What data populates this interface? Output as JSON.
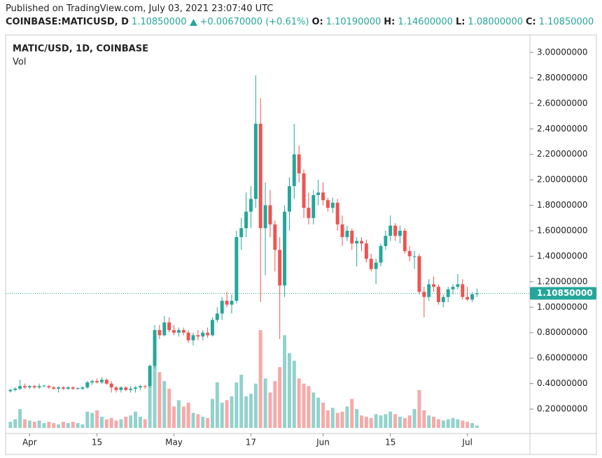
{
  "header": {
    "published": "Published on TradingView.com, July 03, 2021 23:07:40 UTC",
    "symbol": "COINBASE:MATICUSD, D",
    "price": "1.10850000",
    "change": "+0.00670000 (+0.61%)",
    "o_label": "O:",
    "o": "1.10190000",
    "h_label": "H:",
    "h": "1.14600000",
    "l_label": "L:",
    "l": "1.08000000",
    "c_label": "C:",
    "c": "1.10850000"
  },
  "chart_data": {
    "type": "candlestick",
    "title": "MATIC/USD, 1D, COINBASE",
    "volume_label": "Vol",
    "up_color": "#26a69a",
    "down_color": "#ef5350",
    "grid": false,
    "last_price_label": "1.10850000",
    "x": [
      "2021-03-28",
      "2021-03-29",
      "2021-03-30",
      "2021-03-31",
      "2021-04-01",
      "2021-04-02",
      "2021-04-03",
      "2021-04-04",
      "2021-04-05",
      "2021-04-06",
      "2021-04-07",
      "2021-04-08",
      "2021-04-09",
      "2021-04-10",
      "2021-04-11",
      "2021-04-12",
      "2021-04-13",
      "2021-04-14",
      "2021-04-15",
      "2021-04-16",
      "2021-04-17",
      "2021-04-18",
      "2021-04-19",
      "2021-04-20",
      "2021-04-21",
      "2021-04-22",
      "2021-04-23",
      "2021-04-24",
      "2021-04-25",
      "2021-04-26",
      "2021-04-27",
      "2021-04-28",
      "2021-04-29",
      "2021-04-30",
      "2021-05-01",
      "2021-05-02",
      "2021-05-03",
      "2021-05-04",
      "2021-05-05",
      "2021-05-06",
      "2021-05-07",
      "2021-05-08",
      "2021-05-09",
      "2021-05-10",
      "2021-05-11",
      "2021-05-12",
      "2021-05-13",
      "2021-05-14",
      "2021-05-15",
      "2021-05-16",
      "2021-05-17",
      "2021-05-18",
      "2021-05-19",
      "2021-05-20",
      "2021-05-21",
      "2021-05-22",
      "2021-05-23",
      "2021-05-24",
      "2021-05-25",
      "2021-05-26",
      "2021-05-27",
      "2021-05-28",
      "2021-05-29",
      "2021-05-30",
      "2021-05-31",
      "2021-06-01",
      "2021-06-02",
      "2021-06-03",
      "2021-06-04",
      "2021-06-05",
      "2021-06-06",
      "2021-06-07",
      "2021-06-08",
      "2021-06-09",
      "2021-06-10",
      "2021-06-11",
      "2021-06-12",
      "2021-06-13",
      "2021-06-14",
      "2021-06-15",
      "2021-06-16",
      "2021-06-17",
      "2021-06-18",
      "2021-06-19",
      "2021-06-20",
      "2021-06-21",
      "2021-06-22",
      "2021-06-23",
      "2021-06-24",
      "2021-06-25",
      "2021-06-26",
      "2021-06-27",
      "2021-06-28",
      "2021-06-29",
      "2021-06-30",
      "2021-07-01",
      "2021-07-02",
      "2021-07-03"
    ],
    "open": [
      0.34,
      0.35,
      0.36,
      0.38,
      0.37,
      0.38,
      0.37,
      0.38,
      0.38,
      0.37,
      0.36,
      0.37,
      0.36,
      0.37,
      0.36,
      0.36,
      0.37,
      0.41,
      0.42,
      0.41,
      0.43,
      0.4,
      0.37,
      0.35,
      0.37,
      0.35,
      0.36,
      0.37,
      0.38,
      0.38,
      0.54,
      0.82,
      0.78,
      0.88,
      0.82,
      0.8,
      0.82,
      0.8,
      0.74,
      0.78,
      0.77,
      0.8,
      0.78,
      0.9,
      0.95,
      1.05,
      1.02,
      1.05,
      1.55,
      1.62,
      1.75,
      1.85,
      2.44,
      1.62,
      1.8,
      1.65,
      1.45,
      1.17,
      1.75,
      1.95,
      2.2,
      2.05,
      1.78,
      1.7,
      1.88,
      1.9,
      1.84,
      1.78,
      1.82,
      1.65,
      1.55,
      1.6,
      1.5,
      1.52,
      1.5,
      1.38,
      1.3,
      1.35,
      1.48,
      1.56,
      1.64,
      1.56,
      1.6,
      1.44,
      1.4,
      1.4,
      1.12,
      1.08,
      1.18,
      1.16,
      1.04,
      1.08,
      1.14,
      1.16,
      1.18,
      1.08,
      1.06,
      1.1019
    ],
    "high": [
      0.36,
      0.37,
      0.43,
      0.4,
      0.39,
      0.39,
      0.4,
      0.39,
      0.39,
      0.38,
      0.38,
      0.38,
      0.38,
      0.38,
      0.37,
      0.38,
      0.42,
      0.43,
      0.44,
      0.45,
      0.44,
      0.42,
      0.38,
      0.38,
      0.38,
      0.38,
      0.38,
      0.39,
      0.39,
      0.55,
      0.86,
      0.86,
      0.93,
      0.92,
      0.86,
      0.84,
      0.84,
      0.82,
      0.8,
      0.82,
      0.82,
      0.84,
      0.92,
      1.0,
      1.08,
      1.12,
      1.1,
      1.6,
      1.7,
      1.9,
      1.95,
      2.82,
      2.64,
      1.98,
      1.92,
      1.68,
      1.55,
      1.8,
      2.02,
      2.44,
      2.27,
      2.08,
      1.9,
      1.92,
      2.0,
      1.98,
      1.86,
      1.86,
      1.85,
      1.72,
      1.64,
      1.62,
      1.55,
      1.55,
      1.53,
      1.42,
      1.38,
      1.5,
      1.6,
      1.72,
      1.66,
      1.64,
      1.62,
      1.48,
      1.44,
      1.42,
      1.16,
      1.22,
      1.24,
      1.18,
      1.1,
      1.16,
      1.18,
      1.26,
      1.22,
      1.16,
      1.12,
      1.146
    ],
    "low": [
      0.33,
      0.34,
      0.35,
      0.36,
      0.36,
      0.36,
      0.36,
      0.37,
      0.36,
      0.35,
      0.33,
      0.35,
      0.35,
      0.35,
      0.35,
      0.35,
      0.36,
      0.39,
      0.4,
      0.4,
      0.39,
      0.33,
      0.33,
      0.33,
      0.34,
      0.33,
      0.33,
      0.35,
      0.36,
      0.37,
      0.52,
      0.75,
      0.77,
      0.8,
      0.78,
      0.77,
      0.78,
      0.72,
      0.7,
      0.74,
      0.74,
      0.76,
      0.77,
      0.88,
      0.9,
      1.0,
      0.95,
      1.03,
      1.45,
      1.55,
      1.62,
      1.78,
      1.04,
      1.25,
      1.55,
      1.28,
      0.75,
      1.08,
      1.6,
      1.85,
      1.98,
      1.7,
      1.65,
      1.65,
      1.8,
      1.8,
      1.75,
      1.74,
      1.6,
      1.48,
      1.52,
      1.45,
      1.32,
      1.44,
      1.35,
      1.28,
      1.18,
      1.32,
      1.45,
      1.52,
      1.52,
      1.5,
      1.42,
      1.36,
      1.3,
      1.1,
      0.92,
      1.05,
      1.12,
      1.02,
      1.0,
      1.04,
      1.1,
      1.14,
      1.06,
      1.05,
      1.04,
      1.08
    ],
    "close": [
      0.35,
      0.36,
      0.38,
      0.37,
      0.38,
      0.37,
      0.38,
      0.385,
      0.37,
      0.36,
      0.37,
      0.36,
      0.37,
      0.36,
      0.365,
      0.37,
      0.41,
      0.42,
      0.41,
      0.43,
      0.4,
      0.37,
      0.35,
      0.37,
      0.35,
      0.36,
      0.37,
      0.38,
      0.375,
      0.54,
      0.82,
      0.78,
      0.88,
      0.82,
      0.8,
      0.82,
      0.8,
      0.74,
      0.78,
      0.77,
      0.8,
      0.78,
      0.9,
      0.95,
      1.05,
      1.02,
      1.05,
      1.55,
      1.62,
      1.75,
      1.85,
      2.44,
      1.62,
      1.8,
      1.65,
      1.45,
      1.17,
      1.75,
      1.95,
      2.2,
      2.05,
      1.78,
      1.7,
      1.88,
      1.9,
      1.84,
      1.78,
      1.82,
      1.65,
      1.55,
      1.6,
      1.5,
      1.52,
      1.5,
      1.38,
      1.3,
      1.35,
      1.48,
      1.56,
      1.64,
      1.56,
      1.6,
      1.44,
      1.4,
      1.4,
      1.12,
      1.08,
      1.18,
      1.16,
      1.04,
      1.08,
      1.14,
      1.16,
      1.18,
      1.08,
      1.06,
      1.1019,
      1.1085
    ],
    "volume": [
      0.1,
      0.12,
      0.2,
      0.12,
      0.11,
      0.1,
      0.11,
      0.09,
      0.1,
      0.09,
      0.08,
      0.1,
      0.09,
      0.1,
      0.09,
      0.08,
      0.18,
      0.17,
      0.19,
      0.14,
      0.12,
      0.13,
      0.11,
      0.12,
      0.14,
      0.15,
      0.18,
      0.14,
      0.12,
      0.38,
      0.65,
      0.49,
      0.42,
      0.36,
      0.22,
      0.27,
      0.22,
      0.25,
      0.17,
      0.16,
      0.14,
      0.13,
      0.28,
      0.41,
      0.25,
      0.27,
      0.3,
      0.41,
      0.47,
      0.3,
      0.32,
      0.4,
      0.82,
      0.44,
      0.33,
      0.42,
      0.53,
      0.78,
      0.64,
      0.58,
      0.44,
      0.4,
      0.38,
      0.33,
      0.29,
      0.25,
      0.19,
      0.21,
      0.17,
      0.18,
      0.22,
      0.28,
      0.2,
      0.15,
      0.14,
      0.13,
      0.16,
      0.15,
      0.16,
      0.18,
      0.16,
      0.14,
      0.13,
      0.15,
      0.2,
      0.35,
      0.19,
      0.15,
      0.14,
      0.12,
      0.11,
      0.12,
      0.13,
      0.12,
      0.11,
      0.1,
      0.09,
      0.07
    ],
    "xlim": [
      "2021-03-27",
      "2021-07-14"
    ],
    "xticks": [
      {
        "value": "2021-04-01",
        "label": "Apr"
      },
      {
        "value": "2021-04-15",
        "label": "15"
      },
      {
        "value": "2021-05-01",
        "label": "May"
      },
      {
        "value": "2021-05-17",
        "label": "17"
      },
      {
        "value": "2021-06-01",
        "label": "Jun"
      },
      {
        "value": "2021-06-15",
        "label": "15"
      },
      {
        "value": "2021-07-01",
        "label": "Jul"
      }
    ],
    "ylim": [
      0.052,
      3.137
    ],
    "yticks": [
      {
        "value": 0.2,
        "label": "0.20000000"
      },
      {
        "value": 0.4,
        "label": "0.40000000"
      },
      {
        "value": 0.6,
        "label": "0.60000000"
      },
      {
        "value": 0.8,
        "label": "0.80000000"
      },
      {
        "value": 1.0,
        "label": "1.00000000"
      },
      {
        "value": 1.2,
        "label": "1.20000000"
      },
      {
        "value": 1.4,
        "label": "1.40000000"
      },
      {
        "value": 1.6,
        "label": "1.60000000"
      },
      {
        "value": 1.8,
        "label": "1.80000000"
      },
      {
        "value": 2.0,
        "label": "2.00000000"
      },
      {
        "value": 2.2,
        "label": "2.20000000"
      },
      {
        "value": 2.4,
        "label": "2.40000000"
      },
      {
        "value": 2.6,
        "label": "2.60000000"
      },
      {
        "value": 2.8,
        "label": "2.80000000"
      },
      {
        "value": 3.0,
        "label": "3.00000000"
      }
    ]
  }
}
